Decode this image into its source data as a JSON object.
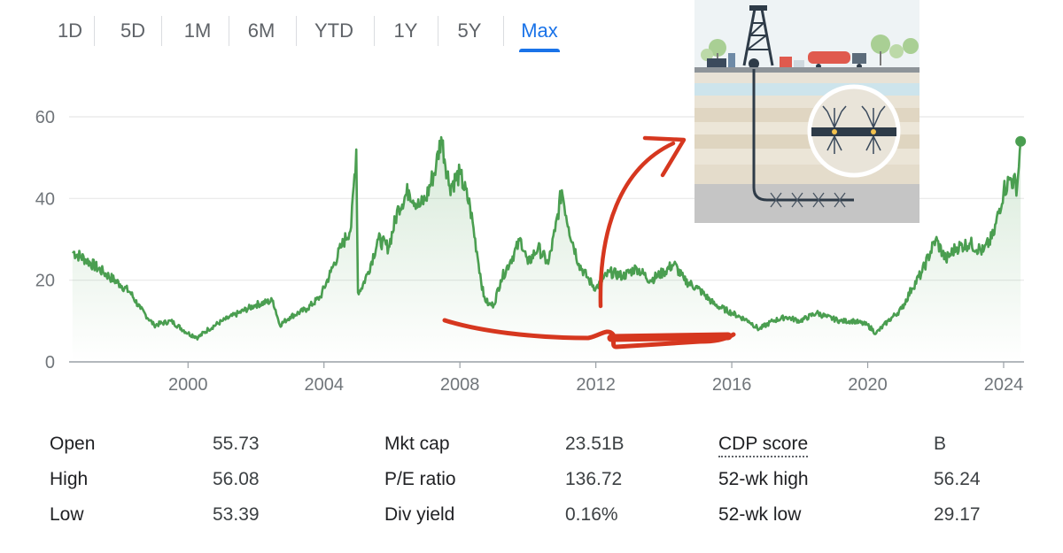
{
  "tabs": {
    "items": [
      "1D",
      "5D",
      "1M",
      "6M",
      "YTD",
      "1Y",
      "5Y",
      "Max"
    ],
    "active": "Max"
  },
  "colors": {
    "line": "#4a9e50",
    "accent": "#1a73e8",
    "annotation": "#d6371f",
    "grid": "#e8e8e8"
  },
  "chart_data": {
    "type": "line",
    "ylim": [
      0,
      60
    ],
    "xlim": [
      1996.5,
      2024.6
    ],
    "y_ticks": [
      "0",
      "20",
      "40",
      "60"
    ],
    "x_ticks": [
      "2000",
      "2004",
      "2008",
      "2012",
      "2016",
      "2020",
      "2024"
    ],
    "grid": "horizontal",
    "series": [
      {
        "x": [
          1996.6,
          1997.0,
          1997.5,
          1998.0,
          1998.3,
          1998.6,
          1999.0,
          1999.5,
          2000.0,
          2000.3,
          2000.6,
          2001.0,
          2001.5,
          2002.0,
          2002.5,
          2002.7,
          2003.0,
          2003.5,
          2003.9,
          2004.2,
          2004.5,
          2004.8,
          2004.95,
          2005.0,
          2005.1,
          2005.3,
          2005.6,
          2005.9,
          2006.2,
          2006.5,
          2006.8,
          2007.0,
          2007.3,
          2007.45,
          2007.7,
          2008.0,
          2008.3,
          2008.5,
          2008.7,
          2008.85,
          2009.0,
          2009.2,
          2009.5,
          2009.8,
          2010.0,
          2010.3,
          2010.6,
          2010.8,
          2011.0,
          2011.2,
          2011.5,
          2011.8,
          2012.0,
          2012.4,
          2012.8,
          2013.2,
          2013.6,
          2014.0,
          2014.3,
          2014.6,
          2015.0,
          2015.5,
          2016.0,
          2016.5,
          2016.8,
          2017.2,
          2017.6,
          2018.0,
          2018.5,
          2018.8,
          2019.2,
          2019.6,
          2020.0,
          2020.25,
          2020.6,
          2021.0,
          2021.3,
          2021.6,
          2022.0,
          2022.3,
          2022.6,
          2023.0,
          2023.4,
          2023.7,
          2024.0,
          2024.2,
          2024.4,
          2024.5
        ],
        "y": [
          27,
          25,
          22,
          19,
          17,
          13,
          9,
          10,
          7,
          6,
          8,
          10,
          12,
          14,
          15,
          9,
          11,
          13,
          16,
          22,
          28,
          33,
          52,
          17,
          18,
          22,
          30,
          28,
          38,
          42,
          38,
          40,
          48,
          55,
          43,
          46,
          38,
          27,
          16,
          14,
          14,
          20,
          25,
          30,
          24,
          28,
          24,
          32,
          42,
          33,
          24,
          20,
          18,
          22,
          21,
          23,
          20,
          22,
          24,
          20,
          18,
          14,
          12,
          10,
          8,
          10,
          11,
          10,
          12,
          11,
          10,
          10,
          9,
          7,
          10,
          13,
          18,
          22,
          30,
          25,
          28,
          29,
          27,
          31,
          42,
          45,
          43,
          54
        ]
      }
    ]
  },
  "stats": {
    "col1": [
      {
        "label": "Open",
        "value": "55.73"
      },
      {
        "label": "High",
        "value": "56.08"
      },
      {
        "label": "Low",
        "value": "53.39"
      }
    ],
    "col2": [
      {
        "label": "Mkt cap",
        "value": "23.51B"
      },
      {
        "label": "P/E ratio",
        "value": "136.72"
      },
      {
        "label": "Div yield",
        "value": "0.16%"
      }
    ],
    "col3": [
      {
        "label": "CDP score",
        "value": "B"
      },
      {
        "label": "52-wk high",
        "value": "56.24"
      },
      {
        "label": "52-wk low",
        "value": "29.17"
      }
    ]
  },
  "inset": {
    "icon": "fracking-well-illustration",
    "truck_color": "#e05a4e",
    "sky_color": "#eef3f5"
  }
}
